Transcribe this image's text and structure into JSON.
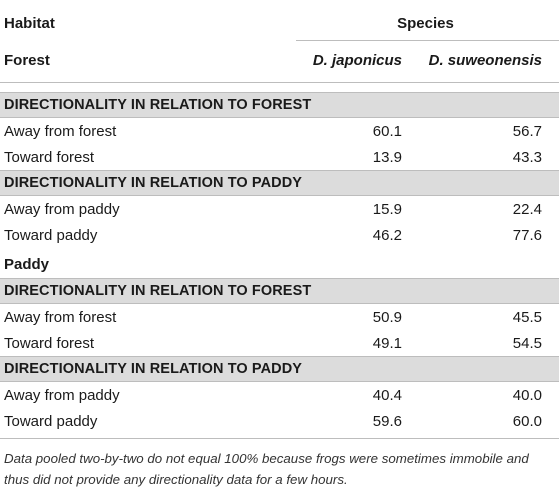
{
  "header": {
    "habitat_label": "Habitat",
    "species_label": "Species",
    "group_forest": "Forest",
    "col1": "D. japonicus",
    "col2": "D. suweonensis"
  },
  "groups": [
    {
      "sections": [
        {
          "title": "DIRECTIONALITY IN RELATION TO FOREST",
          "rows": [
            {
              "label": "Away from forest",
              "v1": "60.1",
              "v2": "56.7"
            },
            {
              "label": "Toward forest",
              "v1": "13.9",
              "v2": "43.3"
            }
          ]
        },
        {
          "title": "DIRECTIONALITY IN RELATION TO PADDY",
          "rows": [
            {
              "label": "Away from paddy",
              "v1": "15.9",
              "v2": "22.4"
            },
            {
              "label": "Toward paddy",
              "v1": "46.2",
              "v2": "77.6"
            }
          ]
        }
      ]
    },
    {
      "name": "Paddy",
      "sections": [
        {
          "title": "DIRECTIONALITY IN RELATION TO FOREST",
          "rows": [
            {
              "label": "Away from forest",
              "v1": "50.9",
              "v2": "45.5"
            },
            {
              "label": "Toward forest",
              "v1": "49.1",
              "v2": "54.5"
            }
          ]
        },
        {
          "title": "DIRECTIONALITY IN RELATION TO PADDY",
          "rows": [
            {
              "label": "Away from paddy",
              "v1": "40.4",
              "v2": "40.0"
            },
            {
              "label": "Toward paddy",
              "v1": "59.6",
              "v2": "60.0"
            }
          ]
        }
      ]
    }
  ],
  "footnote": "Data pooled two-by-two do not equal 100% because frogs were sometimes immobile and thus did not provide any directionality data for a few hours."
}
